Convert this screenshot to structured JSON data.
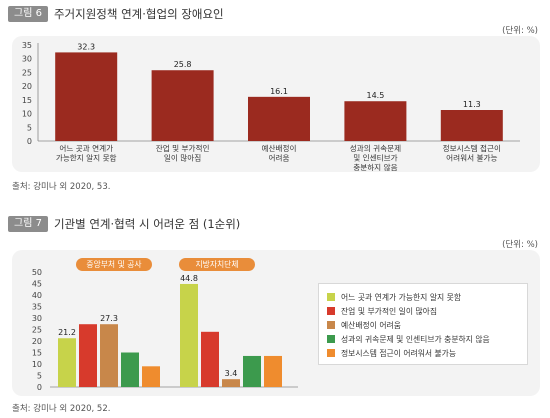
{
  "figure6": {
    "tag": "그림 6",
    "title": "주거지원정책 연계·협업의 장애요인",
    "unit": "(단위: %)",
    "source": "출처: 강미나 외 2020, 53."
  },
  "figure7": {
    "tag": "그림 7",
    "title": "기관별 연계·협력 시 어려운 점 (1순위)",
    "unit": "(단위: %)",
    "source": "출처: 강미나 외 2020, 52.",
    "group_labels": [
      "중앙부처 및 공사",
      "지방자치단체"
    ]
  },
  "colors": {
    "bar6": "#9b2a1f",
    "panel": "#f3f3f3",
    "series": [
      "#c7d34a",
      "#d73a2c",
      "#c8874a",
      "#3c9a4d",
      "#ef8c2e"
    ],
    "group_label": "#e98d3a"
  },
  "chart_data": [
    {
      "type": "bar",
      "categories": [
        "어느 곳과 연계가\n가능한지 알지 못함",
        "잔업 및 부가적인\n일이 많아짐",
        "예산배정이\n어려움",
        "성과의 귀속문제\n및 인센티브가\n충분하지 않음",
        "정보시스템 접근이\n어려워서 불가능"
      ],
      "values": [
        32.3,
        25.8,
        16.1,
        14.5,
        11.3
      ],
      "ylim": [
        0,
        35
      ],
      "yticks": [
        0,
        5,
        10,
        15,
        20,
        25,
        30,
        35
      ],
      "grid": false
    },
    {
      "type": "bar",
      "categories": [
        "중앙부처 및 공사",
        "지방자치단체"
      ],
      "series": [
        {
          "name": "어느 곳과 연계가 가능한지 알지 못함",
          "values": [
            21.2,
            44.8
          ]
        },
        {
          "name": "잔업 및 부가적인 일이 많아짐",
          "values": [
            27.3,
            24
          ]
        },
        {
          "name": "예산배정이 어려움",
          "values": [
            27.3,
            3.4
          ]
        },
        {
          "name": "성과의 귀속문제 및 인센티브가 충분하지 않음",
          "values": [
            15,
            13.5
          ]
        },
        {
          "name": "정보시스템 접근이 어려워서 불가능",
          "values": [
            9,
            13.5
          ]
        }
      ],
      "data_labels": [
        [
          "21.2",
          null,
          "27.3",
          null,
          null
        ],
        [
          "44.8",
          null,
          "3.4",
          null,
          null
        ]
      ],
      "ylim": [
        0,
        50
      ],
      "yticks": [
        0,
        5,
        10,
        15,
        20,
        25,
        30,
        35,
        40,
        45,
        50
      ],
      "legend": "right",
      "grid": false
    }
  ]
}
